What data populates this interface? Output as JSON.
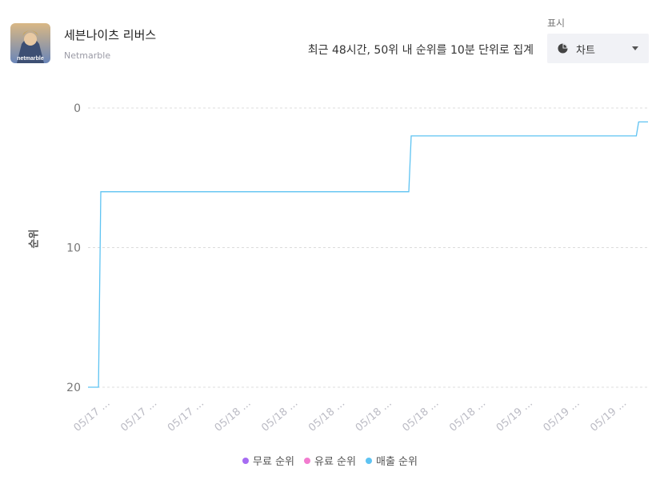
{
  "app": {
    "title": "세븐나이츠 리버스",
    "developer": "Netmarble",
    "icon_text": "netmarble"
  },
  "summary": "최근 48시간, 50위 내 순위를 10분 단위로 집계",
  "display": {
    "label": "표시",
    "value": "차트",
    "icon": "pie-chart-icon"
  },
  "chart_data": {
    "type": "line",
    "ylabel": "순위",
    "y_reversed": true,
    "ylim": [
      0,
      20
    ],
    "y_ticks": [
      0,
      10,
      20
    ],
    "x_ticks": [
      "05/17 ...",
      "05/17 ...",
      "05/17 ...",
      "05/18 ...",
      "05/18 ...",
      "05/18 ...",
      "05/18 ...",
      "05/18 ...",
      "05/18 ...",
      "05/19 ...",
      "05/19 ...",
      "05/19 ..."
    ],
    "x_range": [
      0,
      48
    ],
    "grid": true,
    "legend_position": "bottom",
    "series": [
      {
        "name": "무료 순위",
        "color": "#a66cf2",
        "points": []
      },
      {
        "name": "유료 순위",
        "color": "#f27ccf",
        "points": []
      },
      {
        "name": "매출 순위",
        "color": "#5ec3f2",
        "points": [
          [
            0,
            20
          ],
          [
            0.9,
            20
          ],
          [
            1.1,
            6
          ],
          [
            27.5,
            6
          ],
          [
            27.7,
            2
          ],
          [
            47,
            2
          ],
          [
            47.2,
            1
          ],
          [
            48,
            1
          ]
        ]
      }
    ]
  }
}
